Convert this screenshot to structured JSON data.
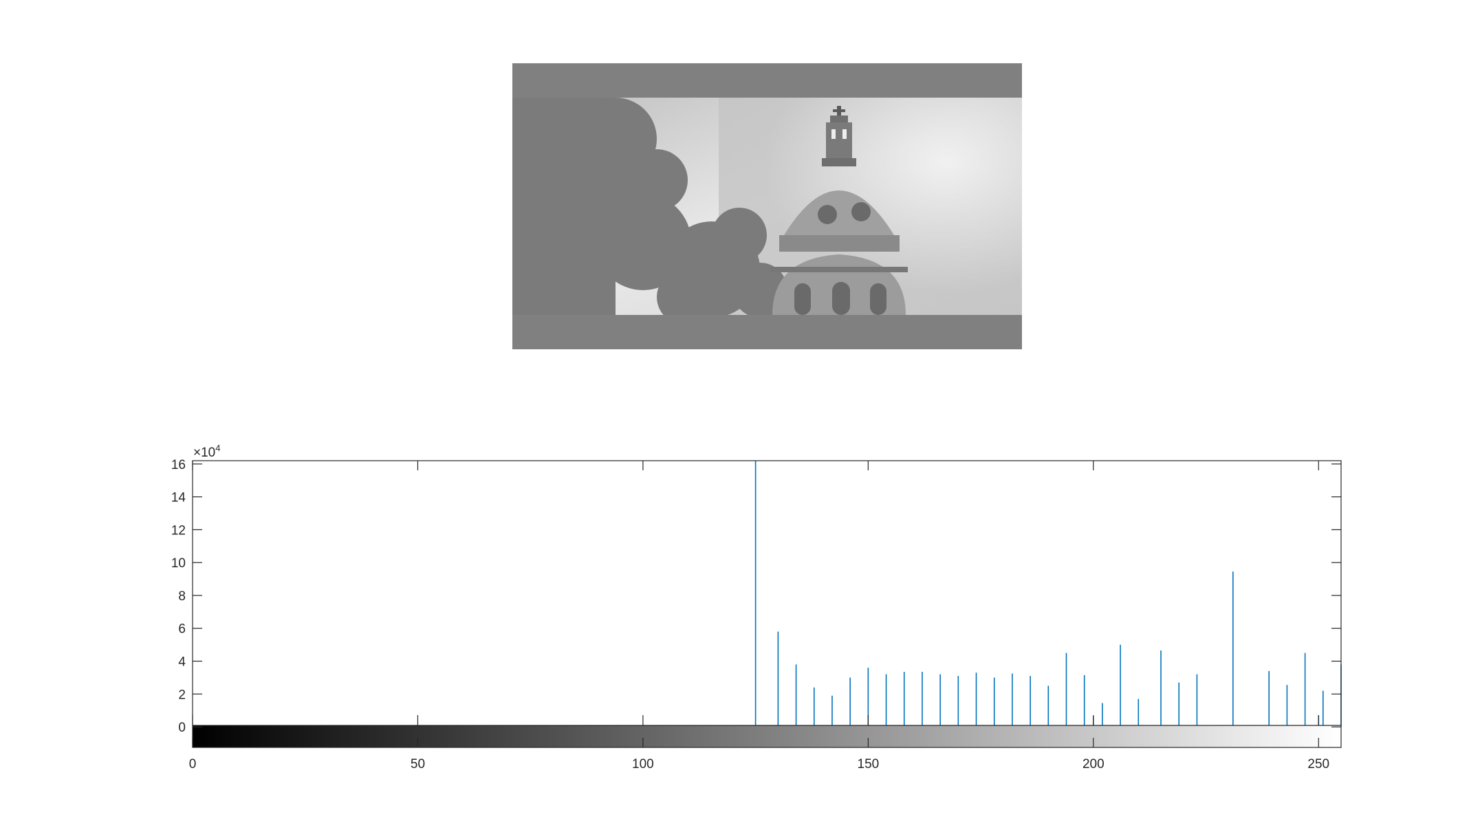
{
  "image": {
    "description_icon": "grayscale-photo-icon",
    "background": "#808080",
    "sky": "#d6d6d6",
    "tree": "#7c7c7c",
    "dome": "#9a9a9a"
  },
  "chart_data": {
    "type": "bar",
    "subtype": "stem-histogram",
    "title": "",
    "xlabel": "",
    "ylabel": "",
    "xlim": [
      0,
      255
    ],
    "ylim": [
      -12500,
      162000
    ],
    "y_exponent_label": "×10",
    "y_exponent_power": "4",
    "x_ticks": [
      0,
      50,
      100,
      150,
      200,
      250
    ],
    "x_tick_labels": [
      "0",
      "50",
      "100",
      "150",
      "200",
      "250"
    ],
    "y_ticks": [
      0,
      20000,
      40000,
      60000,
      80000,
      100000,
      120000,
      140000,
      160000
    ],
    "y_tick_labels": [
      "0",
      "2",
      "4",
      "6",
      "8",
      "10",
      "12",
      "14",
      "16"
    ],
    "colorbar": {
      "from": "#000000",
      "to": "#ffffff",
      "range": [
        0,
        255
      ]
    },
    "series_color": "#0072bd",
    "grid": false,
    "bins": [
      125,
      130,
      134,
      138,
      142,
      146,
      150,
      154,
      158,
      162,
      166,
      170,
      174,
      178,
      182,
      186,
      190,
      194,
      198,
      200,
      202,
      206,
      210,
      215,
      219,
      223,
      231,
      239,
      243,
      247,
      250,
      251,
      255
    ],
    "counts": [
      162000,
      58000,
      38000,
      24000,
      19000,
      30000,
      36000,
      32000,
      33500,
      33500,
      32000,
      31000,
      33000,
      30000,
      32500,
      31000,
      25000,
      45000,
      31500,
      6500,
      14500,
      50000,
      17000,
      46500,
      27000,
      32000,
      94500,
      34000,
      25500,
      45000,
      7000,
      22000,
      38000
    ]
  }
}
